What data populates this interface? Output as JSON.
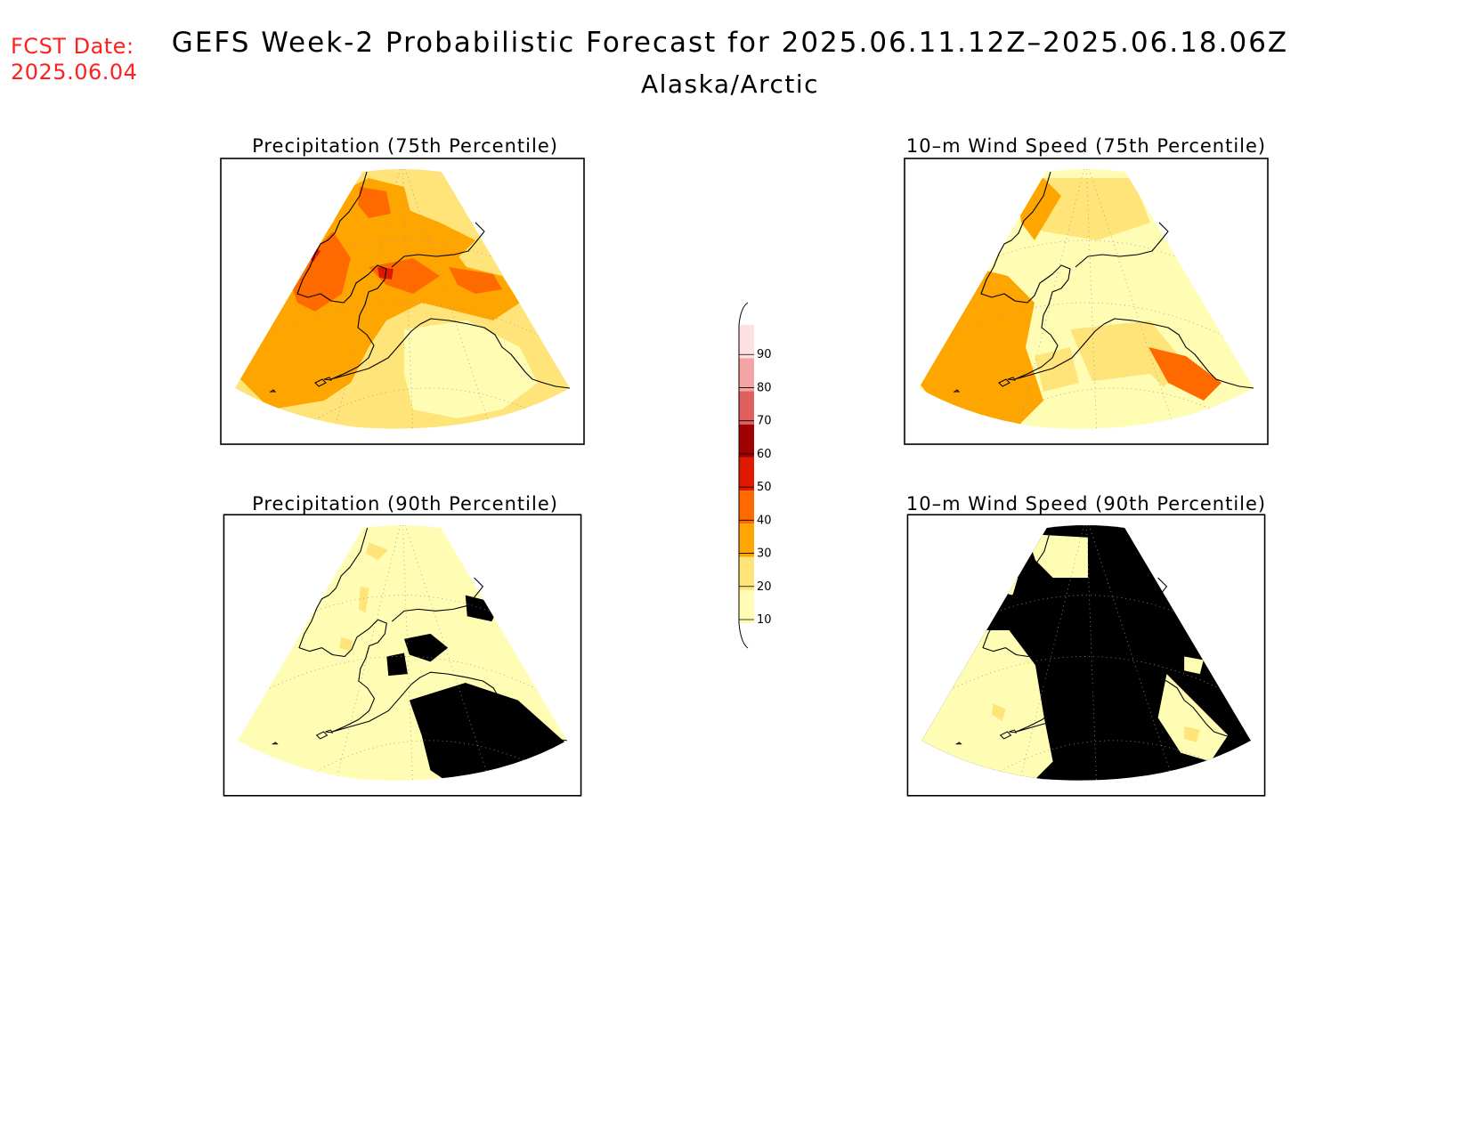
{
  "header": {
    "fcst_label": "FCST Date:",
    "fcst_date": "2025.06.04",
    "title": "GEFS Week-2 Probabilistic Forecast for 2025.06.11.12Z–2025.06.18.06Z",
    "subtitle": "Alaska/Arctic"
  },
  "panels": [
    {
      "title": "Precipitation (75th Percentile)",
      "variable": "precipitation",
      "percentile": 75
    },
    {
      "title": "10–m Wind Speed (75th Percentile)",
      "variable": "wind",
      "percentile": 75
    },
    {
      "title": "Precipitation (90th Percentile)",
      "variable": "precipitation",
      "percentile": 90
    },
    {
      "title": "10–m Wind Speed (90th Percentile)",
      "variable": "wind",
      "percentile": 90
    }
  ],
  "legend": {
    "ticks": [
      "10",
      "20",
      "30",
      "40",
      "50",
      "60",
      "70",
      "80",
      "90"
    ],
    "colors": [
      "#fffcb4",
      "#ffe47a",
      "#ffa500",
      "#ff6a00",
      "#e01800",
      "#a00000",
      "#e06060",
      "#f4a4a4",
      "#fde0e0"
    ]
  }
}
